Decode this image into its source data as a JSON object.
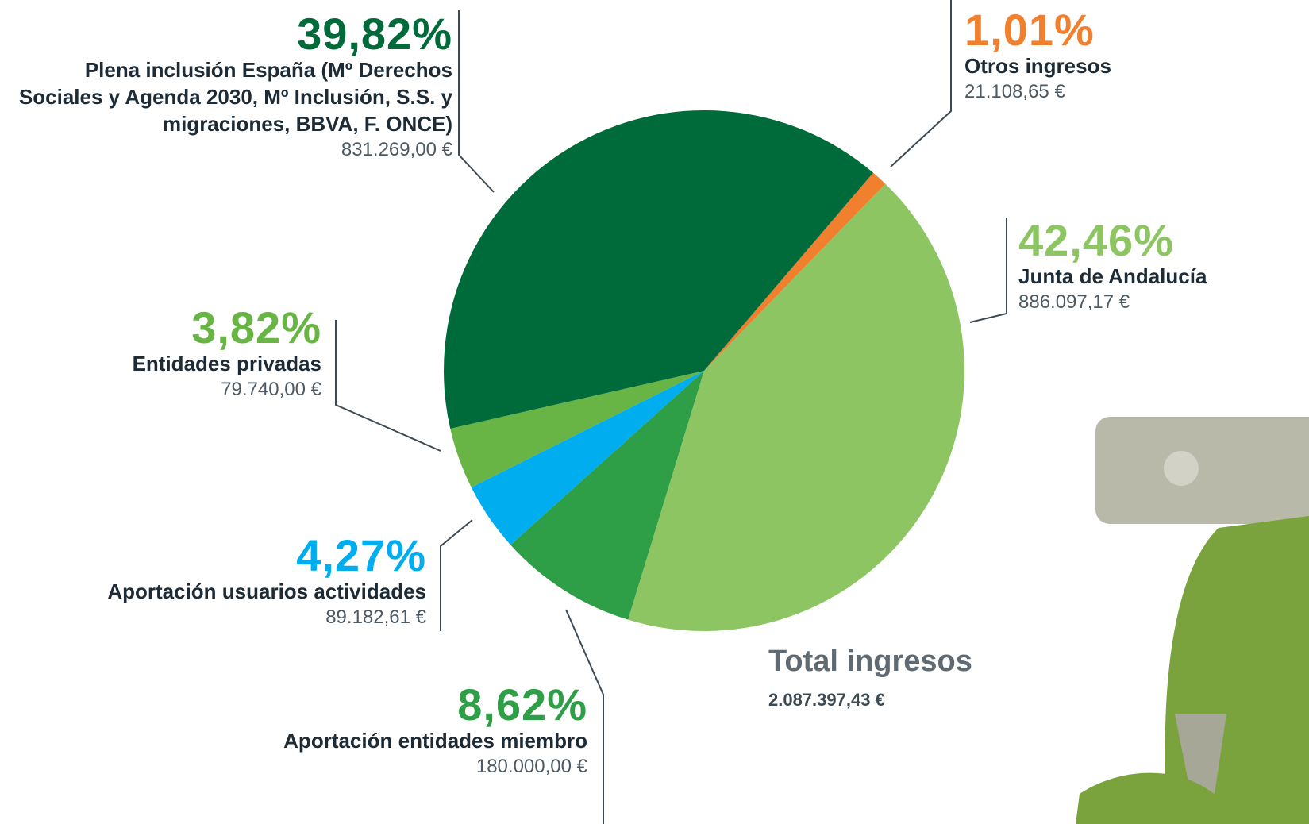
{
  "chart_data": {
    "type": "pie",
    "categories": [
      "Otros ingresos",
      "Junta de Andalucía",
      "Aportación entidades miembro",
      "Aportación usuarios actividades",
      "Entidades privadas",
      "Plena inclusión España (Mº Derechos Sociales y Agenda 2030, Mº Inclusión, S.S. y migraciones, BBVA, F. ONCE)"
    ],
    "values": [
      1.01,
      42.46,
      8.62,
      4.27,
      3.82,
      39.82
    ],
    "value_labels": [
      "1,01%",
      "42,46%",
      "8,62%",
      "4,27%",
      "3,82%",
      "39,82%"
    ],
    "amounts": [
      "21.108,65 €",
      "886.097,17 €",
      "180.000,00 €",
      "89.182,61 €",
      "79.740,00 €",
      "831.269,00 €"
    ],
    "colors": [
      "#f07f2e",
      "#8dc563",
      "#2e9e47",
      "#00adef",
      "#68b545",
      "#006b3a"
    ],
    "total_label": "Total ingresos",
    "total_value": "2.087.397,43 €"
  }
}
